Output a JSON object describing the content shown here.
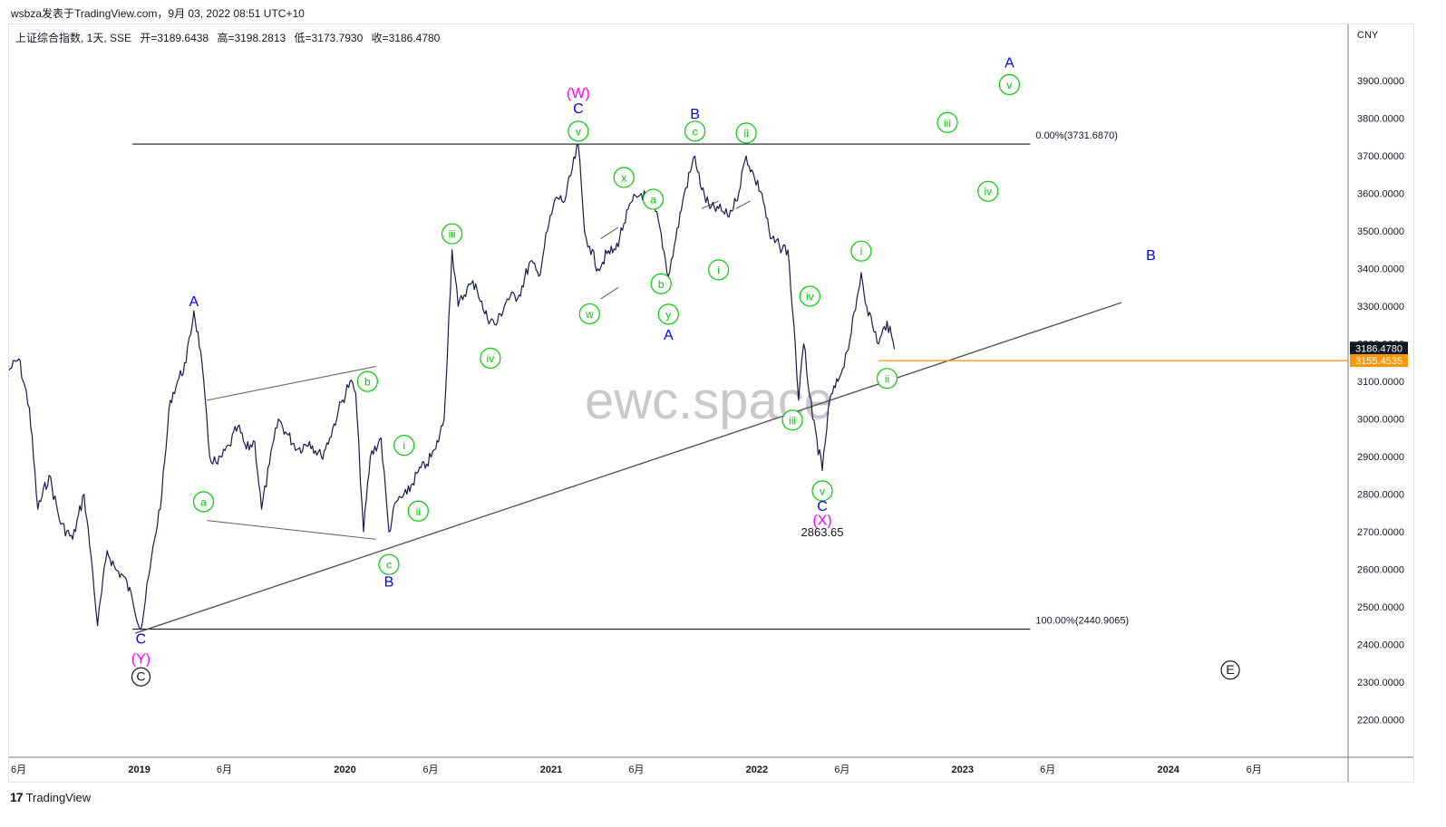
{
  "header": {
    "publisher": "wsbza发表于TradingView.com，9月 03, 2022 08:51 UTC+10"
  },
  "legend": {
    "symbol": "上证综合指数, 1天, SSE",
    "open": "开=3189.6438",
    "high": "高=3198.2813",
    "low": "低=3173.7930",
    "close": "收=3186.4780"
  },
  "currency": "CNY",
  "watermark": "ewc.space",
  "footer": {
    "brand": "TradingView",
    "logo_icon": "tradingview-logo-icon"
  },
  "colors": {
    "price_line": "#1a1a4e",
    "wave_blue": "#0000ff",
    "wave_magenta": "#ff00ff",
    "wave_green": "#00cc00",
    "fib_line": "#131722",
    "trend_line": "#555555",
    "level_line": "#ff9800",
    "last_price_bg": "#131722",
    "level_bg": "#ff9800"
  },
  "chart_data": {
    "type": "line",
    "title": "",
    "xlabel": "",
    "ylabel": "",
    "ylim": [
      2100,
      4050
    ],
    "y_ticks": [
      2200,
      2300,
      2400,
      2500,
      2600,
      2700,
      2800,
      2900,
      3000,
      3100,
      3200,
      3300,
      3400,
      3500,
      3600,
      3700,
      3800,
      3900
    ],
    "y_tick_labels": [
      "2200.0000",
      "2300.0000",
      "2400.0000",
      "2500.0000",
      "2600.0000",
      "2700.0000",
      "2800.0000",
      "2900.0000",
      "3000.0000",
      "3100.0000",
      "3200.0000",
      "3300.0000",
      "3400.0000",
      "3500.0000",
      "3600.0000",
      "3700.0000",
      "3800.0000",
      "3900.0000"
    ],
    "x_range": [
      "2018-05-15",
      "2024-11-15"
    ],
    "x_ticks": [
      {
        "date": "2018-06-01",
        "label": "6月"
      },
      {
        "date": "2019-01-01",
        "label": "2019"
      },
      {
        "date": "2019-06-01",
        "label": "6月"
      },
      {
        "date": "2020-01-01",
        "label": "2020"
      },
      {
        "date": "2020-06-01",
        "label": "6月"
      },
      {
        "date": "2021-01-01",
        "label": "2021"
      },
      {
        "date": "2021-06-01",
        "label": "6月"
      },
      {
        "date": "2022-01-01",
        "label": "2022"
      },
      {
        "date": "2022-06-01",
        "label": "6月"
      },
      {
        "date": "2023-01-01",
        "label": "2023"
      },
      {
        "date": "2023-06-01",
        "label": "6月"
      },
      {
        "date": "2024-01-01",
        "label": "2024"
      },
      {
        "date": "2024-06-01",
        "label": "6月"
      }
    ],
    "series": [
      {
        "type": "line",
        "x": [
          "2018-05-15",
          "2018-06-01",
          "2018-06-20",
          "2018-07-05",
          "2018-07-25",
          "2018-08-15",
          "2018-09-05",
          "2018-09-25",
          "2018-10-10",
          "2018-10-19",
          "2018-11-05",
          "2018-11-20",
          "2018-12-05",
          "2018-12-20",
          "2019-01-04",
          "2019-01-20",
          "2019-02-10",
          "2019-02-25",
          "2019-03-10",
          "2019-03-25",
          "2019-04-08",
          "2019-04-20",
          "2019-05-06",
          "2019-05-20",
          "2019-06-10",
          "2019-06-25",
          "2019-07-10",
          "2019-07-25",
          "2019-08-06",
          "2019-08-20",
          "2019-09-05",
          "2019-09-20",
          "2019-10-10",
          "2019-10-30",
          "2019-11-20",
          "2019-12-05",
          "2019-12-20",
          "2020-01-10",
          "2020-01-20",
          "2020-02-03",
          "2020-02-15",
          "2020-03-05",
          "2020-03-19",
          "2020-04-01",
          "2020-04-20",
          "2020-05-10",
          "2020-05-25",
          "2020-06-10",
          "2020-06-25",
          "2020-07-09",
          "2020-07-20",
          "2020-08-05",
          "2020-08-20",
          "2020-09-05",
          "2020-09-25",
          "2020-10-15",
          "2020-11-05",
          "2020-11-25",
          "2020-12-10",
          "2020-12-25",
          "2021-01-10",
          "2021-01-25",
          "2021-02-18",
          "2021-03-01",
          "2021-03-10",
          "2021-03-25",
          "2021-04-10",
          "2021-04-25",
          "2021-05-10",
          "2021-05-25",
          "2021-06-10",
          "2021-06-25",
          "2021-07-10",
          "2021-07-28",
          "2021-08-10",
          "2021-08-25",
          "2021-09-13",
          "2021-09-25",
          "2021-10-10",
          "2021-10-25",
          "2021-11-10",
          "2021-11-25",
          "2021-12-13",
          "2021-12-28",
          "2022-01-10",
          "2022-01-25",
          "2022-02-10",
          "2022-02-25",
          "2022-03-10",
          "2022-03-16",
          "2022-03-25",
          "2022-04-10",
          "2022-04-27",
          "2022-05-10",
          "2022-05-25",
          "2022-06-10",
          "2022-06-25",
          "2022-07-05",
          "2022-07-15",
          "2022-07-25",
          "2022-08-05",
          "2022-08-20",
          "2022-09-02"
        ],
        "y": [
          3130,
          3160,
          3030,
          2760,
          2850,
          2720,
          2680,
          2800,
          2600,
          2450,
          2650,
          2600,
          2580,
          2520,
          2441,
          2600,
          2800,
          3050,
          3100,
          3150,
          3288,
          3180,
          2900,
          2880,
          2930,
          2980,
          2920,
          2940,
          2760,
          2880,
          3000,
          2960,
          2920,
          2940,
          2900,
          2950,
          3020,
          3100,
          3070,
          2700,
          2900,
          2950,
          2700,
          2780,
          2800,
          2860,
          2880,
          2920,
          3000,
          3450,
          3300,
          3350,
          3360,
          3280,
          3250,
          3320,
          3330,
          3420,
          3380,
          3500,
          3590,
          3580,
          3731,
          3500,
          3460,
          3400,
          3440,
          3450,
          3520,
          3580,
          3600,
          3580,
          3530,
          3380,
          3480,
          3600,
          3700,
          3610,
          3560,
          3560,
          3540,
          3580,
          3700,
          3640,
          3600,
          3480,
          3460,
          3450,
          3200,
          3050,
          3200,
          3000,
          2863,
          3050,
          3100,
          3180,
          3290,
          3390,
          3300,
          3250,
          3200,
          3260,
          3186
        ]
      }
    ],
    "fib_levels": [
      {
        "label": "0.00%(3731.6870)",
        "value": 3731.687,
        "x_start": "2018-12-20",
        "x_end": "2023-05-01"
      },
      {
        "label": "100.00%(2440.9065)",
        "value": 2440.9065,
        "x_start": "2018-12-20",
        "x_end": "2023-05-01"
      }
    ],
    "trend_lines": [
      {
        "x": [
          "2018-12-25",
          "2023-10-10"
        ],
        "y": [
          2430,
          3310
        ],
        "kind": "support"
      },
      {
        "x": [
          "2019-05-01",
          "2020-02-25"
        ],
        "y": [
          3050,
          3140
        ],
        "kind": "triangle-upper"
      },
      {
        "x": [
          "2019-05-01",
          "2020-02-25"
        ],
        "y": [
          2730,
          2680
        ],
        "kind": "triangle-lower"
      },
      {
        "x": [
          "2021-03-30",
          "2021-04-30"
        ],
        "y": [
          3480,
          3510
        ],
        "kind": "channel-upper"
      },
      {
        "x": [
          "2021-03-30",
          "2021-04-30"
        ],
        "y": [
          3320,
          3350
        ],
        "kind": "channel-lower"
      },
      {
        "x": [
          "2021-09-25",
          "2021-10-25"
        ],
        "y": [
          3560,
          3580
        ],
        "kind": "channel"
      },
      {
        "x": [
          "2021-11-25",
          "2021-12-20"
        ],
        "y": [
          3560,
          3580
        ],
        "kind": "channel"
      }
    ],
    "horizontal_level": {
      "value": 3155.4535,
      "x_start": "2022-08-05"
    },
    "price_labels": [
      {
        "text": "3186.4780",
        "value": 3186.478,
        "style": "last"
      },
      {
        "text": "3155.4535",
        "value": 3155.4535,
        "style": "level"
      }
    ],
    "annotations": [
      {
        "text": "2863.65",
        "x": "2022-04-27",
        "y": 2700,
        "style": "plain"
      },
      {
        "text": "C",
        "x": "2019-01-04",
        "y": 2415,
        "style": "blue"
      },
      {
        "text": "(Y)",
        "x": "2019-01-04",
        "y": 2362,
        "style": "magenta"
      },
      {
        "text": "C",
        "x": "2019-01-04",
        "y": 2314,
        "style": "circle-black"
      },
      {
        "text": "A",
        "x": "2019-04-08",
        "y": 3313,
        "style": "blue"
      },
      {
        "text": "a",
        "x": "2019-04-25",
        "y": 2780,
        "style": "circle-green"
      },
      {
        "text": "b",
        "x": "2020-02-10",
        "y": 3100,
        "style": "circle-green"
      },
      {
        "text": "c",
        "x": "2020-03-19",
        "y": 2613,
        "style": "circle-green"
      },
      {
        "text": "B",
        "x": "2020-03-19",
        "y": 2566,
        "style": "blue"
      },
      {
        "text": "i",
        "x": "2020-04-15",
        "y": 2930,
        "style": "circle-green"
      },
      {
        "text": "ii",
        "x": "2020-05-10",
        "y": 2755,
        "style": "circle-green"
      },
      {
        "text": "iii",
        "x": "2020-07-09",
        "y": 3493,
        "style": "circle-green"
      },
      {
        "text": "iv",
        "x": "2020-09-15",
        "y": 3162,
        "style": "circle-green"
      },
      {
        "text": "C",
        "x": "2021-02-18",
        "y": 3826,
        "style": "blue"
      },
      {
        "text": "(W)",
        "x": "2021-02-18",
        "y": 3867,
        "style": "magenta"
      },
      {
        "text": "v",
        "x": "2021-02-18",
        "y": 3766,
        "style": "circle-green"
      },
      {
        "text": "w",
        "x": "2021-03-10",
        "y": 3280,
        "style": "circle-green"
      },
      {
        "text": "x",
        "x": "2021-05-10",
        "y": 3643,
        "style": "circle-green"
      },
      {
        "text": "a",
        "x": "2021-07-01",
        "y": 3585,
        "style": "circle-green"
      },
      {
        "text": "b",
        "x": "2021-07-15",
        "y": 3360,
        "style": "circle-green"
      },
      {
        "text": "y",
        "x": "2021-07-28",
        "y": 3279,
        "style": "circle-green"
      },
      {
        "text": "A",
        "x": "2021-07-28",
        "y": 3223,
        "style": "blue"
      },
      {
        "text": "B",
        "x": "2021-09-13",
        "y": 3811,
        "style": "blue"
      },
      {
        "text": "c",
        "x": "2021-09-13",
        "y": 3766,
        "style": "circle-green"
      },
      {
        "text": "i",
        "x": "2021-10-25",
        "y": 3397,
        "style": "circle-green"
      },
      {
        "text": "ii",
        "x": "2021-12-13",
        "y": 3761,
        "style": "circle-green"
      },
      {
        "text": "iii",
        "x": "2022-03-05",
        "y": 2997,
        "style": "circle-green"
      },
      {
        "text": "iv",
        "x": "2022-04-05",
        "y": 3327,
        "style": "circle-green"
      },
      {
        "text": "v",
        "x": "2022-04-27",
        "y": 2809,
        "style": "circle-green"
      },
      {
        "text": "C",
        "x": "2022-04-27",
        "y": 2768,
        "style": "blue"
      },
      {
        "text": "(X)",
        "x": "2022-04-27",
        "y": 2730,
        "style": "magenta"
      },
      {
        "text": "i",
        "x": "2022-07-05",
        "y": 3447,
        "style": "circle-green"
      },
      {
        "text": "ii",
        "x": "2022-08-20",
        "y": 3108,
        "style": "circle-green"
      },
      {
        "text": "iii",
        "x": "2022-12-05",
        "y": 3789,
        "style": "circle-green"
      },
      {
        "text": "iv",
        "x": "2023-02-15",
        "y": 3606,
        "style": "circle-green"
      },
      {
        "text": "A",
        "x": "2023-03-25",
        "y": 3947,
        "style": "blue"
      },
      {
        "text": "v",
        "x": "2023-03-25",
        "y": 3890,
        "style": "circle-green"
      },
      {
        "text": "B",
        "x": "2023-12-01",
        "y": 3435,
        "style": "blue"
      },
      {
        "text": "E",
        "x": "2024-04-20",
        "y": 2332,
        "style": "circle-black"
      }
    ]
  }
}
